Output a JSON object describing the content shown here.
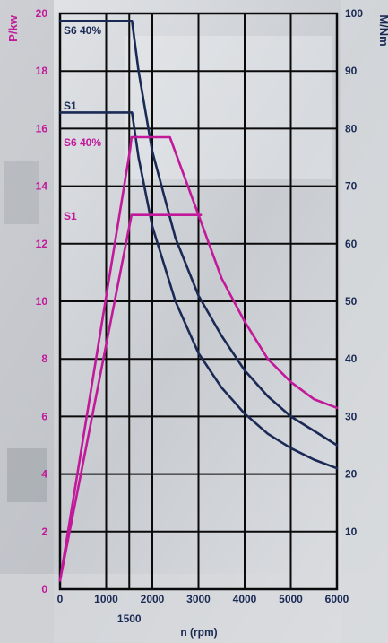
{
  "chart_data": {
    "type": "line",
    "x_label": "n (rpm)",
    "y_left_label": "P/kw",
    "y_right_label": "M/Nm",
    "x_range": [
      0,
      6000
    ],
    "y_left_range": [
      0,
      20
    ],
    "y_right_range": [
      0,
      100
    ],
    "x_ticks": [
      "0",
      "1000",
      "2000",
      "3000",
      "4000",
      "5000",
      "6000"
    ],
    "x_extra_tick": "1500",
    "y_left_ticks": [
      "0",
      "2",
      "4",
      "6",
      "8",
      "10",
      "12",
      "14",
      "16",
      "18",
      "20"
    ],
    "y_right_ticks": [
      "10",
      "20",
      "30",
      "40",
      "50",
      "60",
      "70",
      "80",
      "90",
      "100"
    ],
    "grid": true,
    "colors": {
      "power": "#c2189a",
      "torque": "#1a2a55",
      "grid": "#0a0a0a"
    },
    "series": [
      {
        "name": "S6 40%",
        "quantity": "torque",
        "axis": "right",
        "x": [
          0,
          1560,
          1700,
          2000,
          2500,
          3000,
          3500,
          4000,
          4500,
          5000,
          5500,
          6000
        ],
        "y": [
          98.7,
          98.7,
          90,
          76,
          61,
          51,
          44,
          38,
          33.5,
          30,
          27.5,
          25
        ]
      },
      {
        "name": "S1",
        "quantity": "torque",
        "axis": "right",
        "x": [
          0,
          1560,
          1700,
          2000,
          2500,
          3000,
          3500,
          4000,
          4500,
          5000,
          5500,
          6000
        ],
        "y": [
          82.8,
          82.8,
          75,
          63,
          50,
          41,
          35,
          30.5,
          27,
          24.5,
          22.5,
          21
        ]
      },
      {
        "name": "S6 40%",
        "quantity": "power",
        "axis": "left",
        "x": [
          0,
          1520,
          1550,
          2380,
          3000,
          3500,
          4000,
          4500,
          5000,
          5500,
          6000
        ],
        "y": [
          0.3,
          15.3,
          15.7,
          15.7,
          13,
          10.8,
          9.3,
          8,
          7.2,
          6.6,
          6.3
        ]
      },
      {
        "name": "S1",
        "quantity": "power",
        "axis": "left",
        "x": [
          0,
          1500,
          1550,
          3050
        ],
        "y": [
          0.3,
          12.6,
          13,
          13
        ]
      }
    ]
  }
}
